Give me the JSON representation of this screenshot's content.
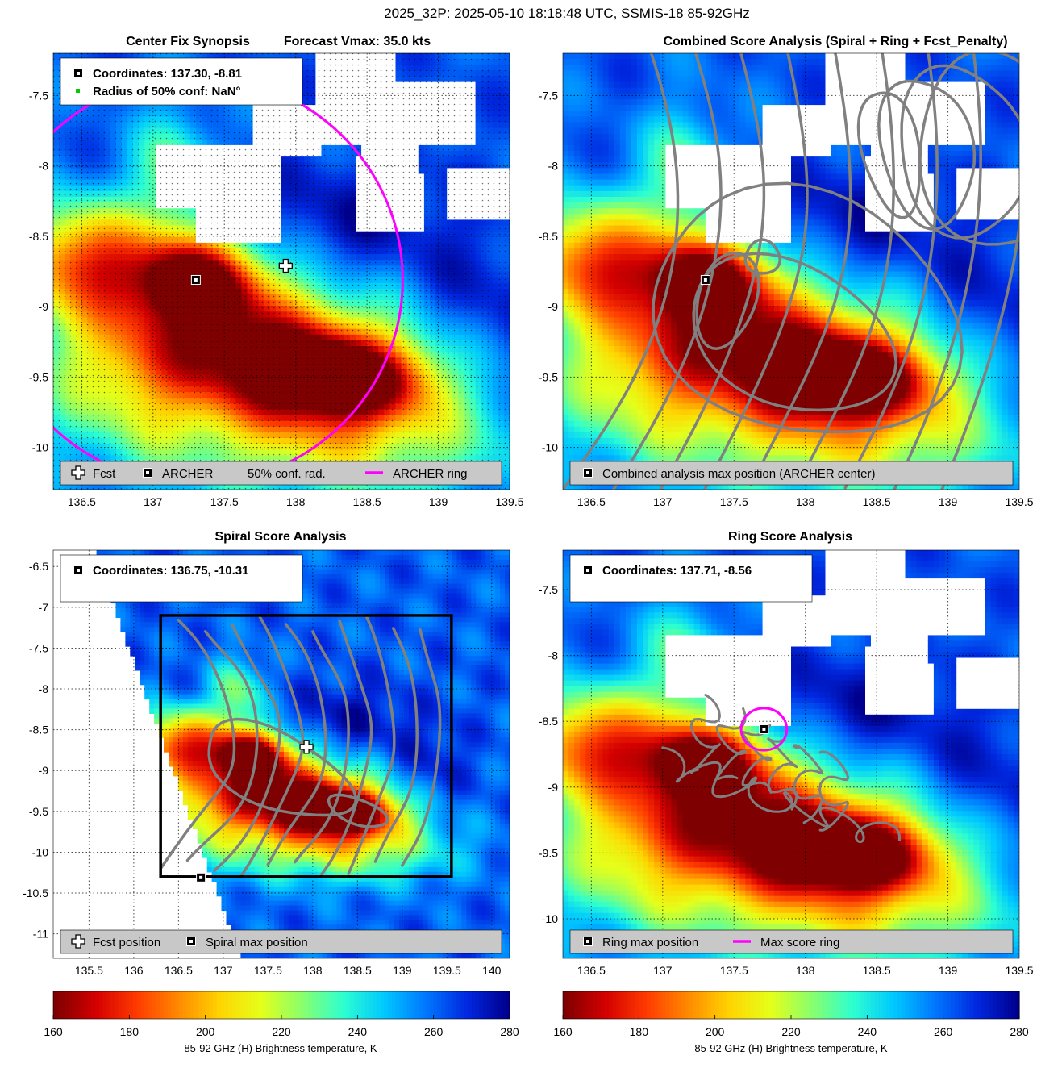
{
  "figure": {
    "title": "2025_32P: 2025-05-10 18:18:48 UTC, SSMIS-18 85-92GHz"
  },
  "colors": {
    "colormap": [
      "#7f0000",
      "#d40000",
      "#ff3b00",
      "#ff8a00",
      "#ffd400",
      "#e5ff1a",
      "#8aff6c",
      "#2dffd0",
      "#00c8ff",
      "#0078ff",
      "#0028e0",
      "#00008f"
    ],
    "contour": "#808080",
    "archer_ring": "#ff00ff",
    "conf_marker": "#00cc00",
    "legend_bg": "#c8c8c8"
  },
  "panels": [
    {
      "id": "synopsis",
      "title_left": "Center Fix Synopsis",
      "title_right": "Forecast Vmax: 35.0 kts",
      "info_lines": [
        "Coordinates: 137.30, -8.81",
        "Radius of 50% conf: NaN°"
      ],
      "legend": [
        {
          "icon": "plus",
          "label": "Fcst"
        },
        {
          "icon": "square",
          "label": "ARCHER"
        },
        {
          "icon": "none",
          "label": "50% conf. rad."
        },
        {
          "icon": "line",
          "label": "ARCHER ring"
        }
      ],
      "xticks": [
        "136.5",
        "137",
        "137.5",
        "138",
        "138.5",
        "139",
        "139.5"
      ],
      "yticks": [
        "-7.5",
        "-8",
        "-8.5",
        "-9",
        "-9.5",
        "-10"
      ]
    },
    {
      "id": "combined",
      "title": "Combined Score Analysis (Spiral + Ring + Fcst_Penalty)",
      "legend": [
        {
          "icon": "square",
          "label": "Combined analysis max position (ARCHER center)"
        }
      ],
      "xticks": [
        "136.5",
        "137",
        "137.5",
        "138",
        "138.5",
        "139",
        "139.5"
      ],
      "yticks": [
        "-7.5",
        "-8",
        "-8.5",
        "-9",
        "-9.5",
        "-10"
      ]
    },
    {
      "id": "spiral",
      "title": "Spiral Score Analysis",
      "info_lines": [
        "Coordinates: 136.75, -10.31"
      ],
      "legend": [
        {
          "icon": "plus",
          "label": "Fcst position"
        },
        {
          "icon": "square",
          "label": "Spiral max position"
        }
      ],
      "xticks": [
        "135.5",
        "136",
        "136.5",
        "137",
        "137.5",
        "138",
        "138.5",
        "139",
        "139.5",
        "140"
      ],
      "yticks": [
        "-6.5",
        "-7",
        "-7.5",
        "-8",
        "-8.5",
        "-9",
        "-9.5",
        "-10",
        "-10.5",
        "-11"
      ]
    },
    {
      "id": "ring",
      "title": "Ring Score Analysis",
      "info_lines": [
        "Coordinates: 137.71, -8.56"
      ],
      "legend": [
        {
          "icon": "square",
          "label": "Ring max position"
        },
        {
          "icon": "line",
          "label": "Max score ring"
        }
      ],
      "xticks": [
        "136.5",
        "137",
        "137.5",
        "138",
        "138.5",
        "139",
        "139.5"
      ],
      "yticks": [
        "-7.5",
        "-8",
        "-8.5",
        "-9",
        "-9.5",
        "-10"
      ]
    }
  ],
  "colorbars": [
    {
      "ticks": [
        "160",
        "180",
        "200",
        "220",
        "240",
        "260",
        "280"
      ],
      "label": "85-92 GHz (H) Brightness temperature, K"
    },
    {
      "ticks": [
        "160",
        "180",
        "200",
        "220",
        "240",
        "260",
        "280"
      ],
      "label": "85-92 GHz (H) Brightness temperature, K"
    }
  ],
  "chart_data": [
    {
      "type": "heatmap",
      "title": "Center Fix Synopsis",
      "subtitle": "Forecast Vmax: 35.0 kts",
      "xlim": [
        136.3,
        139.5
      ],
      "ylim": [
        -10.3,
        -7.2
      ],
      "colorbar": {
        "range": [
          160,
          280
        ],
        "label": "85-92 GHz (H) Brightness temperature, K"
      },
      "archer_center": {
        "lon": 137.3,
        "lat": -8.81
      },
      "forecast_position": {
        "lon": 137.93,
        "lat": -8.71
      },
      "archer_ring_radius_deg": 1.45,
      "minima_K": [
        {
          "lon": 137.3,
          "lat": -8.8,
          "tb": 165
        },
        {
          "lon": 138.35,
          "lat": -9.5,
          "tb": 165
        },
        {
          "lon": 136.5,
          "lat": -8.65,
          "tb": 170
        }
      ]
    },
    {
      "type": "heatmap",
      "title": "Combined Score Analysis (Spiral + Ring + Fcst_Penalty)",
      "xlim": [
        136.3,
        139.5
      ],
      "ylim": [
        -10.3,
        -7.2
      ],
      "max_position": {
        "lon": 137.3,
        "lat": -8.81
      }
    },
    {
      "type": "heatmap",
      "title": "Spiral Score Analysis",
      "xlim": [
        135.1,
        140.2
      ],
      "ylim": [
        -11.3,
        -6.3
      ],
      "spiral_max_position": {
        "lon": 136.75,
        "lat": -10.31
      },
      "forecast_position": {
        "lon": 137.93,
        "lat": -8.71
      },
      "search_box": {
        "lon": [
          136.3,
          139.55
        ],
        "lat": [
          -10.3,
          -7.1
        ]
      }
    },
    {
      "type": "heatmap",
      "title": "Ring Score Analysis",
      "xlim": [
        136.3,
        139.5
      ],
      "ylim": [
        -10.3,
        -7.2
      ],
      "ring_max_position": {
        "lon": 137.71,
        "lat": -8.56
      },
      "max_score_ring_radius_deg": 0.16
    }
  ]
}
